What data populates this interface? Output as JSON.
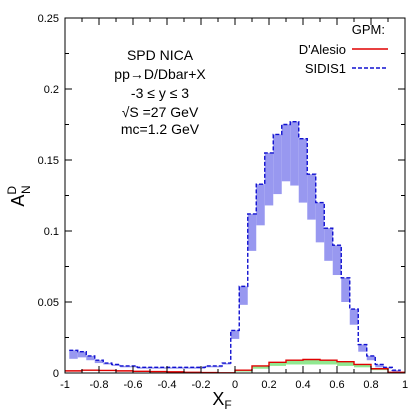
{
  "chart_data": {
    "type": "line",
    "xlabel": "X",
    "xlabel_sub": "F",
    "ylabel": "A",
    "ylabel_sup": "D",
    "ylabel_sub": "N",
    "xlim": [
      -1,
      1
    ],
    "ylim": [
      0,
      0.25
    ],
    "x_ticks": [
      "-1",
      "-0.8",
      "-0.6",
      "-0.4",
      "-0.2",
      "0",
      "0.2",
      "0.4",
      "0.6",
      "0.8",
      "1"
    ],
    "y_ticks": [
      "0",
      "0.05",
      "0.1",
      "0.15",
      "0.2",
      "0.25"
    ],
    "grid": false,
    "annotations": [
      "SPD NICA",
      "pp→D/Dbar+X",
      "-3 ≤ y ≤ 3",
      "√S =27 GeV",
      "mᴄ=1.2 GeV"
    ],
    "legend": {
      "title": "GPM:",
      "position": "top-right",
      "entries": [
        "D'Alesio",
        "SIDIS1"
      ]
    },
    "series": [
      {
        "name": "D'Alesio",
        "color": "#e00000",
        "style": "solid",
        "band_color": "#90e890",
        "x": [
          -0.95,
          -0.85,
          -0.75,
          -0.65,
          -0.55,
          -0.45,
          -0.35,
          -0.25,
          -0.15,
          -0.05,
          0.05,
          0.15,
          0.25,
          0.35,
          0.45,
          0.55,
          0.65,
          0.75,
          0.85,
          0.95
        ],
        "values": [
          0.0015,
          0.002,
          0.0018,
          0.0015,
          0.0012,
          0.001,
          0.0008,
          0.0005,
          0.0003,
          0.0001,
          0.002,
          0.005,
          0.0075,
          0.009,
          0.0095,
          0.009,
          0.008,
          0.006,
          0.003,
          0.0005
        ],
        "band_low": [
          0.0015,
          0.002,
          0.0018,
          0.0015,
          0.0012,
          0.001,
          0.0008,
          0.0005,
          0.0003,
          0.0001,
          0.001,
          0.003,
          0.005,
          0.006,
          0.006,
          0.006,
          0.005,
          0.004,
          0.002,
          0.0003
        ]
      },
      {
        "name": "SIDIS1",
        "color": "#1010d0",
        "style": "dashed",
        "band_color": "#9898f0",
        "x": [
          -0.95,
          -0.9,
          -0.85,
          -0.8,
          -0.75,
          -0.7,
          -0.65,
          -0.6,
          -0.55,
          -0.5,
          -0.45,
          -0.4,
          -0.35,
          -0.3,
          -0.25,
          -0.2,
          -0.15,
          -0.1,
          -0.05,
          0.0,
          0.05,
          0.1,
          0.15,
          0.2,
          0.25,
          0.3,
          0.35,
          0.4,
          0.45,
          0.5,
          0.55,
          0.6,
          0.65,
          0.7,
          0.75,
          0.8,
          0.85,
          0.9,
          0.95
        ],
        "values": [
          0.016,
          0.015,
          0.012,
          0.009,
          0.007,
          0.006,
          0.005,
          0.005,
          0.004,
          0.004,
          0.004,
          0.004,
          0.004,
          0.004,
          0.004,
          0.004,
          0.005,
          0.005,
          0.007,
          0.03,
          0.061,
          0.112,
          0.133,
          0.155,
          0.168,
          0.175,
          0.177,
          0.165,
          0.14,
          0.12,
          0.102,
          0.09,
          0.067,
          0.045,
          0.02,
          0.012,
          0.006,
          0.004,
          0.002
        ],
        "band_low": [
          0.01,
          0.011,
          0.009,
          0.007,
          0.006,
          0.005,
          0.004,
          0.004,
          0.003,
          0.003,
          0.003,
          0.003,
          0.003,
          0.003,
          0.003,
          0.003,
          0.004,
          0.004,
          0.006,
          0.024,
          0.048,
          0.086,
          0.104,
          0.118,
          0.126,
          0.135,
          0.132,
          0.12,
          0.108,
          0.092,
          0.079,
          0.069,
          0.05,
          0.034,
          0.015,
          0.009,
          0.004,
          0.003,
          0.001
        ]
      }
    ]
  }
}
